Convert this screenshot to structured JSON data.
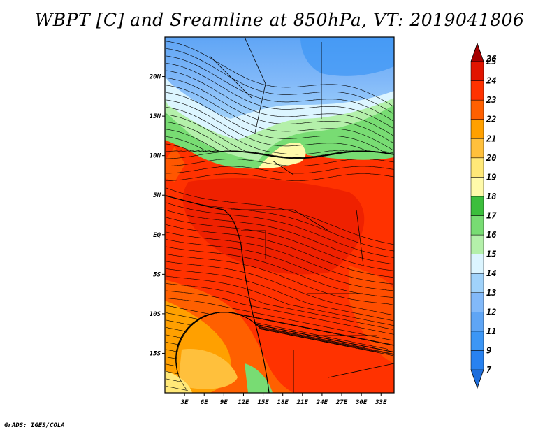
{
  "title": "WBPT [C] and Sreamline at 850hPa, VT: 2019041806",
  "credit": "GrADS: IGES/COLA",
  "map": {
    "lon_range": [
      0,
      35
    ],
    "lat_range": [
      -20,
      25
    ],
    "lat_ticks": [
      {
        "value": 20,
        "label": "20N"
      },
      {
        "value": 15,
        "label": "15N"
      },
      {
        "value": 10,
        "label": "10N"
      },
      {
        "value": 5,
        "label": "5N"
      },
      {
        "value": 0,
        "label": "EQ"
      },
      {
        "value": -5,
        "label": "5S"
      },
      {
        "value": -10,
        "label": "10S"
      },
      {
        "value": -15,
        "label": "15S"
      }
    ],
    "lon_ticks": [
      {
        "value": 3,
        "label": "3E"
      },
      {
        "value": 6,
        "label": "6E"
      },
      {
        "value": 9,
        "label": "9E"
      },
      {
        "value": 12,
        "label": "12E"
      },
      {
        "value": 15,
        "label": "15E"
      },
      {
        "value": 18,
        "label": "18E"
      },
      {
        "value": 21,
        "label": "21E"
      },
      {
        "value": 24,
        "label": "24E"
      },
      {
        "value": 27,
        "label": "27E"
      },
      {
        "value": 30,
        "label": "30E"
      },
      {
        "value": 33,
        "label": "33E"
      }
    ]
  },
  "colorbar": {
    "levels": [
      {
        "label": "7",
        "color": "#1e6edc"
      },
      {
        "label": "9",
        "color": "#2882f0"
      },
      {
        "label": "11",
        "color": "#3c96f5"
      },
      {
        "label": "12",
        "color": "#5fa5f5"
      },
      {
        "label": "13",
        "color": "#82b9f9"
      },
      {
        "label": "14",
        "color": "#a0d2fa"
      },
      {
        "label": "15",
        "color": "#dcf5ff"
      },
      {
        "label": "16",
        "color": "#b4f0aa"
      },
      {
        "label": "17",
        "color": "#78dc73"
      },
      {
        "label": "18",
        "color": "#3cbe3c"
      },
      {
        "label": "19",
        "color": "#fffaaa"
      },
      {
        "label": "20",
        "color": "#ffe878"
      },
      {
        "label": "21",
        "color": "#ffc03c"
      },
      {
        "label": "22",
        "color": "#ffa000"
      },
      {
        "label": "23",
        "color": "#ff6000"
      },
      {
        "label": "24",
        "color": "#ff3200"
      },
      {
        "label": "25",
        "color": "#e11400"
      },
      {
        "label": "26",
        "color": "#a50000"
      }
    ]
  }
}
